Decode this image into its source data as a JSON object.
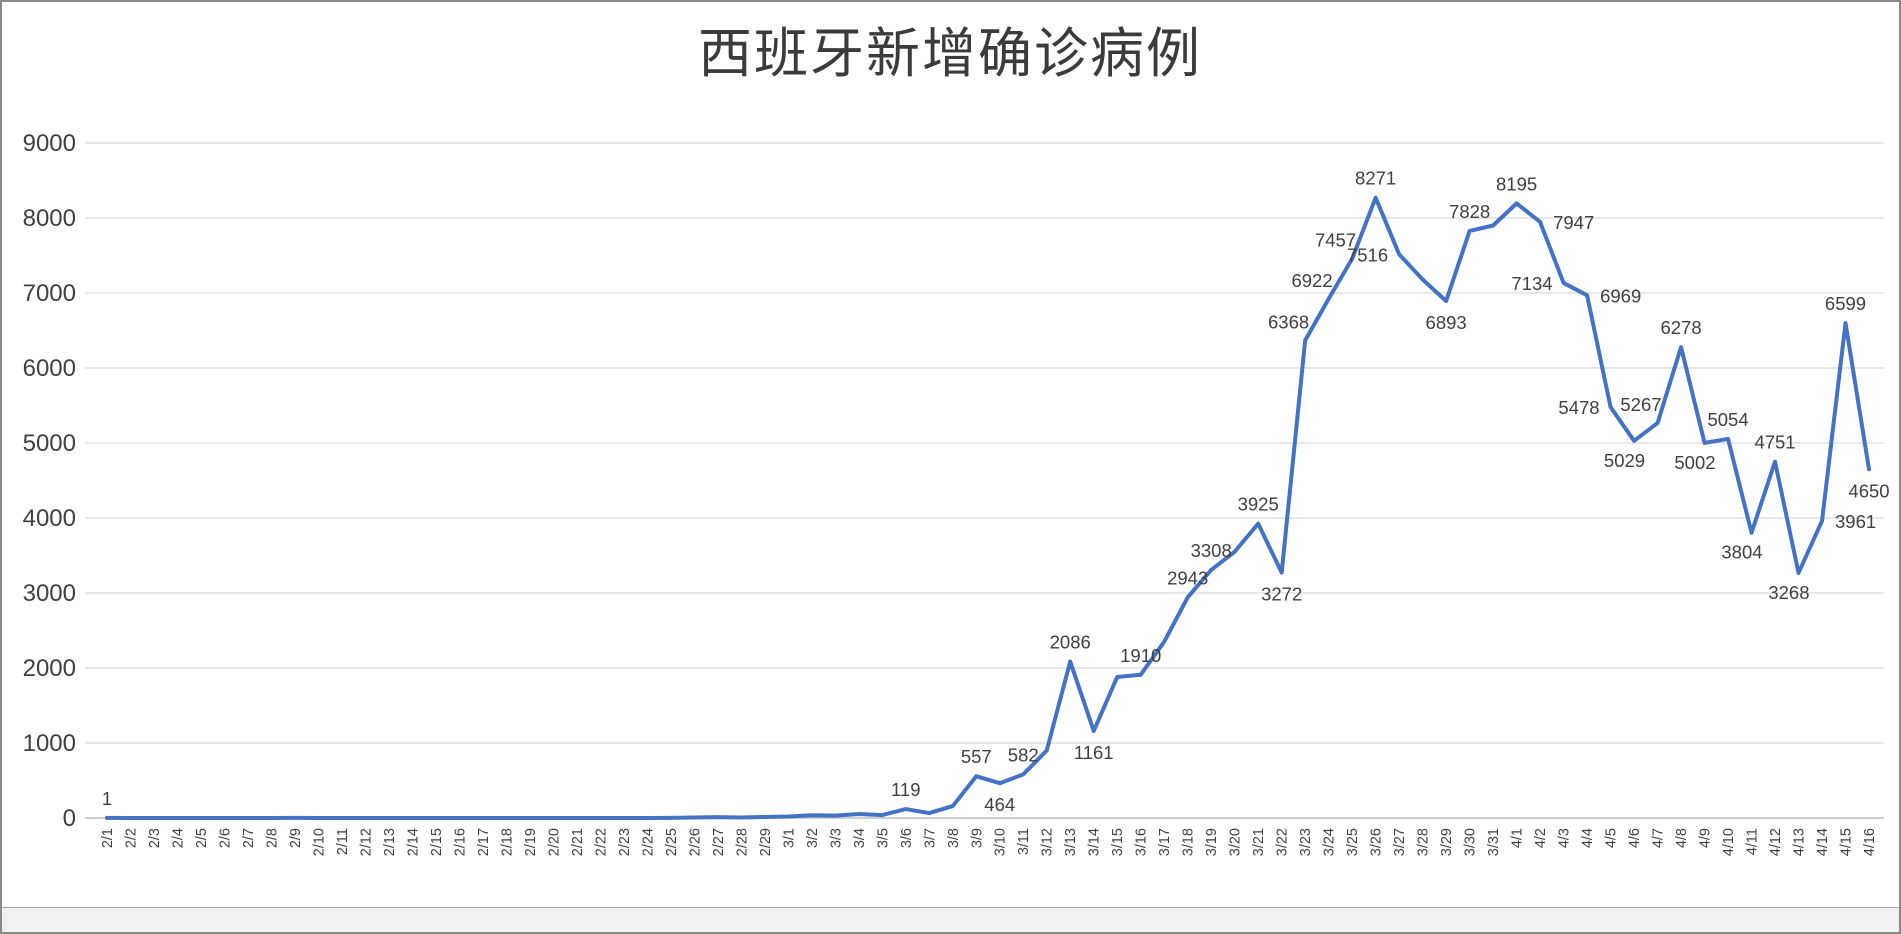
{
  "chart_data": {
    "type": "line",
    "title": "西班牙新增确诊病例",
    "xlabel": "",
    "ylabel": "",
    "ylim": [
      0,
      9000
    ],
    "yticks": [
      0,
      1000,
      2000,
      3000,
      4000,
      5000,
      6000,
      7000,
      8000,
      9000
    ],
    "grid": "horizontal",
    "legend": "none",
    "x_label_rotation": 90,
    "colors": {
      "line": "#4472C4",
      "grid": "#D9D9D9",
      "axis": "#BFBFBF",
      "text": "#404040",
      "title": "#3B3B3B"
    },
    "x": [
      "2/1",
      "2/2",
      "2/3",
      "2/4",
      "2/5",
      "2/6",
      "2/7",
      "2/8",
      "2/9",
      "2/10",
      "2/11",
      "2/12",
      "2/13",
      "2/14",
      "2/15",
      "2/16",
      "2/17",
      "2/18",
      "2/19",
      "2/20",
      "2/21",
      "2/22",
      "2/23",
      "2/24",
      "2/25",
      "2/26",
      "2/27",
      "2/28",
      "2/29",
      "3/1",
      "3/2",
      "3/3",
      "3/4",
      "3/5",
      "3/6",
      "3/7",
      "3/8",
      "3/9",
      "3/10",
      "3/11",
      "3/12",
      "3/13",
      "3/14",
      "3/15",
      "3/16",
      "3/17",
      "3/18",
      "3/19",
      "3/20",
      "3/21",
      "3/22",
      "3/23",
      "3/24",
      "3/25",
      "3/26",
      "3/27",
      "3/28",
      "3/29",
      "3/30",
      "3/31",
      "4/1",
      "4/2",
      "4/3",
      "4/4",
      "4/5",
      "4/6",
      "4/7",
      "4/8",
      "4/9",
      "4/10",
      "4/11",
      "4/12",
      "4/13",
      "4/14",
      "4/15",
      "4/16"
    ],
    "values": [
      1,
      0,
      0,
      0,
      0,
      0,
      0,
      0,
      1,
      0,
      0,
      0,
      0,
      0,
      0,
      0,
      0,
      0,
      0,
      0,
      0,
      0,
      0,
      0,
      2,
      7,
      12,
      7,
      13,
      20,
      37,
      31,
      54,
      39,
      119,
      66,
      159,
      557,
      464,
      582,
      900,
      2086,
      1161,
      1880,
      1910,
      2350,
      2943,
      3308,
      3550,
      3925,
      3272,
      6368,
      6922,
      7457,
      8271,
      7516,
      7180,
      6893,
      7828,
      7900,
      8195,
      7947,
      7134,
      6969,
      5478,
      5029,
      5267,
      6278,
      5002,
      5054,
      3804,
      4751,
      3268,
      3961,
      6599,
      4650
    ],
    "data_labels": [
      {
        "date": "2/1",
        "value": 1,
        "placement": "above"
      },
      {
        "date": "3/6",
        "value": 119,
        "placement": "above"
      },
      {
        "date": "3/9",
        "value": 557,
        "placement": "above"
      },
      {
        "date": "3/10",
        "value": 464,
        "placement": "below"
      },
      {
        "date": "3/11",
        "value": 582,
        "placement": "above"
      },
      {
        "date": "3/13",
        "value": 2086,
        "placement": "above"
      },
      {
        "date": "3/14",
        "value": 1161,
        "placement": "below"
      },
      {
        "date": "3/16",
        "value": 1910,
        "placement": "above"
      },
      {
        "date": "3/18",
        "value": 2943,
        "placement": "above"
      },
      {
        "date": "3/19",
        "value": 3308,
        "placement": "above"
      },
      {
        "date": "3/21",
        "value": 3925,
        "placement": "above"
      },
      {
        "date": "3/22",
        "value": 3272,
        "placement": "below"
      },
      {
        "date": "3/23",
        "value": 6368,
        "placement": "above-left"
      },
      {
        "date": "3/24",
        "value": 6922,
        "placement": "above-left"
      },
      {
        "date": "3/25",
        "value": 7457,
        "placement": "above-left"
      },
      {
        "date": "3/26",
        "value": 8271,
        "placement": "above"
      },
      {
        "date": "3/27",
        "value": 7516,
        "placement": "left"
      },
      {
        "date": "3/29",
        "value": 6893,
        "placement": "below"
      },
      {
        "date": "3/30",
        "value": 7828,
        "placement": "above"
      },
      {
        "date": "4/1",
        "value": 8195,
        "placement": "above"
      },
      {
        "date": "4/2",
        "value": 7947,
        "placement": "right"
      },
      {
        "date": "4/3",
        "value": 7134,
        "placement": "left"
      },
      {
        "date": "4/4",
        "value": 6969,
        "placement": "right"
      },
      {
        "date": "4/5",
        "value": 5478,
        "placement": "left"
      },
      {
        "date": "4/6",
        "value": 5029,
        "placement": "below-left"
      },
      {
        "date": "4/7",
        "value": 5267,
        "placement": "above-left"
      },
      {
        "date": "4/8",
        "value": 6278,
        "placement": "above"
      },
      {
        "date": "4/9",
        "value": 5002,
        "placement": "below-left"
      },
      {
        "date": "4/10",
        "value": 5054,
        "placement": "above"
      },
      {
        "date": "4/11",
        "value": 3804,
        "placement": "below-left"
      },
      {
        "date": "4/12",
        "value": 4751,
        "placement": "above"
      },
      {
        "date": "4/13",
        "value": 3268,
        "placement": "below-left"
      },
      {
        "date": "4/14",
        "value": 3961,
        "placement": "right"
      },
      {
        "date": "4/15",
        "value": 6599,
        "placement": "above"
      },
      {
        "date": "4/16",
        "value": 4650,
        "placement": "below"
      }
    ]
  }
}
